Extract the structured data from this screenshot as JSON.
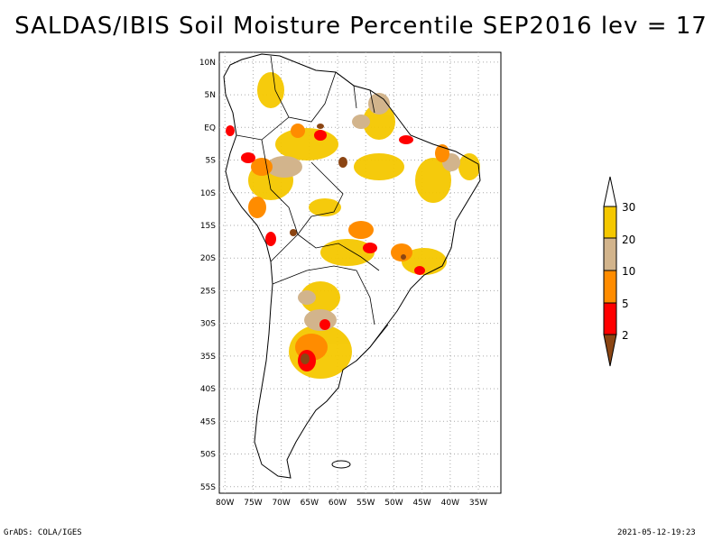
{
  "title": "SALDAS/IBIS Soil Moisture Percentile SEP2016 lev = 17",
  "footer": {
    "left": "GrADS: COLA/IGES",
    "right": "2021-05-12-19:23"
  },
  "axes": {
    "lat_labels": [
      "10N",
      "5N",
      "EQ",
      "5S",
      "10S",
      "15S",
      "20S",
      "25S",
      "30S",
      "35S",
      "40S",
      "45S",
      "50S",
      "55S"
    ],
    "lat_values": [
      10,
      5,
      0,
      -5,
      -10,
      -15,
      -20,
      -25,
      -30,
      -35,
      -40,
      -45,
      -50,
      -55
    ],
    "lon_labels": [
      "80W",
      "75W",
      "70W",
      "65W",
      "60W",
      "55W",
      "50W",
      "45W",
      "40W",
      "35W"
    ],
    "lon_values": [
      -80,
      -75,
      -70,
      -65,
      -60,
      -55,
      -50,
      -45,
      -40,
      -35
    ],
    "lat_range": [
      -56,
      11.5
    ],
    "lon_range": [
      -81,
      -31
    ]
  },
  "colorbar": {
    "labels": [
      "30",
      "20",
      "10",
      "5",
      "2"
    ],
    "colors": {
      "above30": "#ffffff",
      "c20_30": "#f5c800",
      "c10_20": "#d2b48c",
      "c5_10": "#ff8c00",
      "c2_5": "#ff0000",
      "below2": "#8b4513"
    }
  },
  "colors": {
    "land": "#ffffff",
    "border": "#000000",
    "grid": "#aaaaaa"
  }
}
